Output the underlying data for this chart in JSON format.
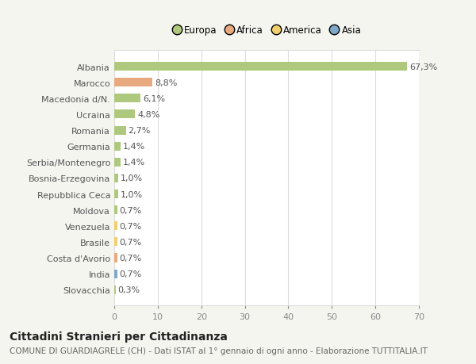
{
  "countries": [
    "Albania",
    "Marocco",
    "Macedonia d/N.",
    "Ucraina",
    "Romania",
    "Germania",
    "Serbia/Montenegro",
    "Bosnia-Erzegovina",
    "Repubblica Ceca",
    "Moldova",
    "Venezuela",
    "Brasile",
    "Costa d'Avorio",
    "India",
    "Slovacchia"
  ],
  "values": [
    67.3,
    8.8,
    6.1,
    4.8,
    2.7,
    1.4,
    1.4,
    1.0,
    1.0,
    0.7,
    0.7,
    0.7,
    0.7,
    0.7,
    0.3
  ],
  "labels": [
    "67,3%",
    "8,8%",
    "6,1%",
    "4,8%",
    "2,7%",
    "1,4%",
    "1,4%",
    "1,0%",
    "1,0%",
    "0,7%",
    "0,7%",
    "0,7%",
    "0,7%",
    "0,7%",
    "0,3%"
  ],
  "colors": [
    "#aec97e",
    "#e8a97e",
    "#aec97e",
    "#aec97e",
    "#aec97e",
    "#aec97e",
    "#aec97e",
    "#aec97e",
    "#aec97e",
    "#aec97e",
    "#f0d06e",
    "#f0d06e",
    "#e8a97e",
    "#7fa8c8",
    "#aec97e"
  ],
  "legend_labels": [
    "Europa",
    "Africa",
    "America",
    "Asia"
  ],
  "legend_colors": [
    "#aec97e",
    "#e8a97e",
    "#f0d06e",
    "#7fa8c8"
  ],
  "title": "Cittadini Stranieri per Cittadinanza",
  "subtitle": "COMUNE DI GUARDIAGRELE (CH) - Dati ISTAT al 1° gennaio di ogni anno - Elaborazione TUTTITALIA.IT",
  "xlim": [
    0,
    70
  ],
  "xticks": [
    0,
    10,
    20,
    30,
    40,
    50,
    60,
    70
  ],
  "background_color": "#f5f5f0",
  "plot_background": "#ffffff",
  "grid_color": "#dddddd",
  "bar_height": 0.55,
  "title_fontsize": 10,
  "subtitle_fontsize": 7.5,
  "label_fontsize": 8,
  "tick_fontsize": 8,
  "legend_fontsize": 8.5
}
